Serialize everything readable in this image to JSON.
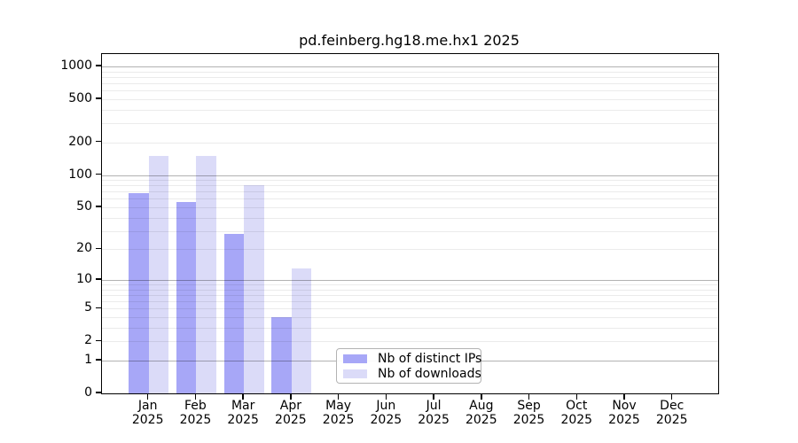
{
  "chart_data": {
    "type": "bar",
    "title": "pd.feinberg.hg18.me.hx1 2025",
    "categories_month": [
      "Jan",
      "Feb",
      "Mar",
      "Apr",
      "May",
      "Jun",
      "Jul",
      "Aug",
      "Sep",
      "Oct",
      "Nov",
      "Dec"
    ],
    "categories_year": "2025",
    "series": [
      {
        "name": "Nb of distinct IPs",
        "color": "#a7a7f7",
        "values": [
          68,
          56,
          28,
          4,
          0,
          0,
          0,
          0,
          0,
          0,
          0,
          0
        ]
      },
      {
        "name": "Nb of downloads",
        "color": "#dbdbf8",
        "values": [
          150,
          150,
          81,
          13,
          0,
          0,
          0,
          0,
          0,
          0,
          0,
          0
        ]
      }
    ],
    "yscale": "log10(1+value)",
    "ylim": [
      0,
      1300
    ],
    "yticks": [
      1000,
      500,
      200,
      100,
      50,
      20,
      10,
      5,
      2,
      1,
      0
    ],
    "grid_major_values": [
      1,
      10,
      100,
      1000
    ],
    "grid_minor_mantissas": [
      2,
      3,
      4,
      5,
      6,
      7,
      8,
      9
    ],
    "grid": "on",
    "legend_position": "bottom-center-inside"
  },
  "legend": {
    "items": [
      {
        "label": "Nb of distinct IPs",
        "color": "#a7a7f7"
      },
      {
        "label": "Nb of downloads",
        "color": "#dbdbf8"
      }
    ]
  },
  "colors": {
    "bar_distinct_ips": "#a7a7f7",
    "bar_downloads": "#dbdbf8",
    "grid_major": "rgba(0,0,0,0.30)",
    "grid_minor": "rgba(0,0,0,0.08)",
    "spine": "#000000",
    "legend_border": "#b3b3b3",
    "text": "#000000"
  }
}
